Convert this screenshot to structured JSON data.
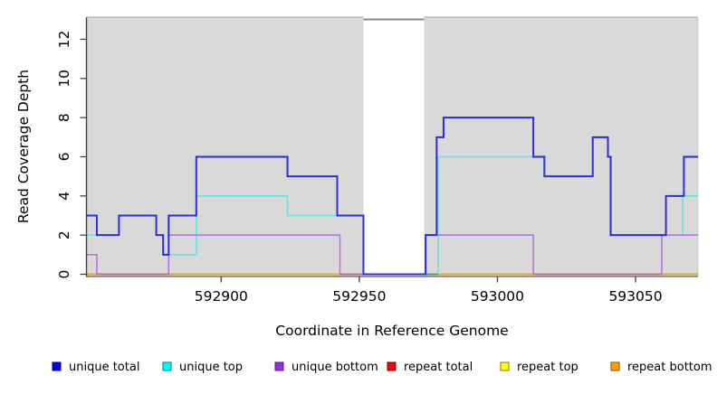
{
  "chart_data": {
    "type": "line",
    "subtype": "step-coverage",
    "title": "",
    "xlabel": "Coordinate in Reference Genome",
    "ylabel": "Read Coverage Depth",
    "xlim": [
      592851.4,
      593072.6
    ],
    "ylim": [
      0,
      13.13
    ],
    "x_ticks": [
      592900,
      592950,
      593000,
      593050
    ],
    "y_ticks": [
      0,
      2,
      4,
      6,
      8,
      10,
      12
    ],
    "grid": false,
    "plot_bg": "#d9d9d9",
    "border_top_color": "#b0b0b0",
    "border_right_color": "#cccccc",
    "axis_color": "#404040",
    "masked_region": {
      "x_start": 592951.5,
      "x_end": 592973.5,
      "fill": "#ffffff",
      "top_edge_color": "#8a8a8a"
    },
    "series": [
      {
        "name": "repeat total",
        "color": "#dd2a2a",
        "width": 1.5,
        "steps": [
          [
            592851.4,
            0
          ],
          [
            593072.6,
            0
          ]
        ]
      },
      {
        "name": "repeat top",
        "color": "#f2e222",
        "width": 1.5,
        "steps": [
          [
            592851.4,
            0
          ],
          [
            593072.6,
            0
          ]
        ]
      },
      {
        "name": "repeat bottom",
        "color": "#ffa500",
        "width": 1.6,
        "steps": [
          [
            592851.4,
            0
          ],
          [
            593072.6,
            0
          ]
        ]
      },
      {
        "name": "unique top",
        "color": "#5fe5e8",
        "width": 1.6,
        "steps": [
          [
            592851.4,
            2
          ],
          [
            592863,
            3
          ],
          [
            592876.5,
            2
          ],
          [
            592879,
            1
          ],
          [
            592891,
            4
          ],
          [
            592924,
            3
          ],
          [
            592951.5,
            0
          ],
          [
            592978.5,
            6
          ],
          [
            593017,
            5
          ],
          [
            593034.5,
            7
          ],
          [
            593040,
            6
          ],
          [
            593041,
            2
          ],
          [
            593067,
            4
          ],
          [
            593072.6,
            4
          ]
        ]
      },
      {
        "name": "unique bottom",
        "color": "#b378d9",
        "width": 1.6,
        "steps": [
          [
            592851.4,
            1
          ],
          [
            592855,
            0
          ],
          [
            592881,
            2
          ],
          [
            592943,
            0
          ],
          [
            592974,
            2
          ],
          [
            593013,
            0
          ],
          [
            593059.5,
            2
          ],
          [
            593072.6,
            2
          ]
        ]
      },
      {
        "name": "unique total",
        "color": "#2b2fd6",
        "width": 2.0,
        "steps": [
          [
            592851.4,
            3
          ],
          [
            592855,
            2
          ],
          [
            592863,
            3
          ],
          [
            592876.5,
            2
          ],
          [
            592879,
            1
          ],
          [
            592881,
            3
          ],
          [
            592891,
            6
          ],
          [
            592924,
            5
          ],
          [
            592942,
            3
          ],
          [
            592951.5,
            0
          ],
          [
            592974,
            2
          ],
          [
            592978,
            7
          ],
          [
            592980.5,
            8
          ],
          [
            593013,
            6
          ],
          [
            593017,
            5
          ],
          [
            593034.5,
            7
          ],
          [
            593040,
            6
          ],
          [
            593041,
            2
          ],
          [
            593061,
            4
          ],
          [
            593067.5,
            6
          ],
          [
            593072.6,
            6
          ]
        ]
      }
    ],
    "baseline_overlap_segments": [
      {
        "x_start": 592855,
        "x_end": 592881,
        "color": "#d4627f"
      },
      {
        "x_start": 592943,
        "x_end": 592951.5,
        "color": "#d4627f"
      },
      {
        "x_start": 593013,
        "x_end": 593059.5,
        "color": "#d4627f"
      },
      {
        "x_start": 592974,
        "x_end": 592978.5,
        "color": "#2f9e7a"
      }
    ],
    "legend": {
      "position": "bottom",
      "items": [
        {
          "label": "unique total",
          "fill": "#0000ee",
          "border": "#000090"
        },
        {
          "label": "unique top",
          "fill": "#00ffff",
          "border": "#007d7d"
        },
        {
          "label": "unique bottom",
          "fill": "#9b2fe0",
          "border": "#571a7e"
        },
        {
          "label": "repeat total",
          "fill": "#ff0000",
          "border": "#7e0000"
        },
        {
          "label": "repeat top",
          "fill": "#ffff00",
          "border": "#7e7e00"
        },
        {
          "label": "repeat bottom",
          "fill": "#ffa500",
          "border": "#7e5200"
        }
      ]
    }
  }
}
